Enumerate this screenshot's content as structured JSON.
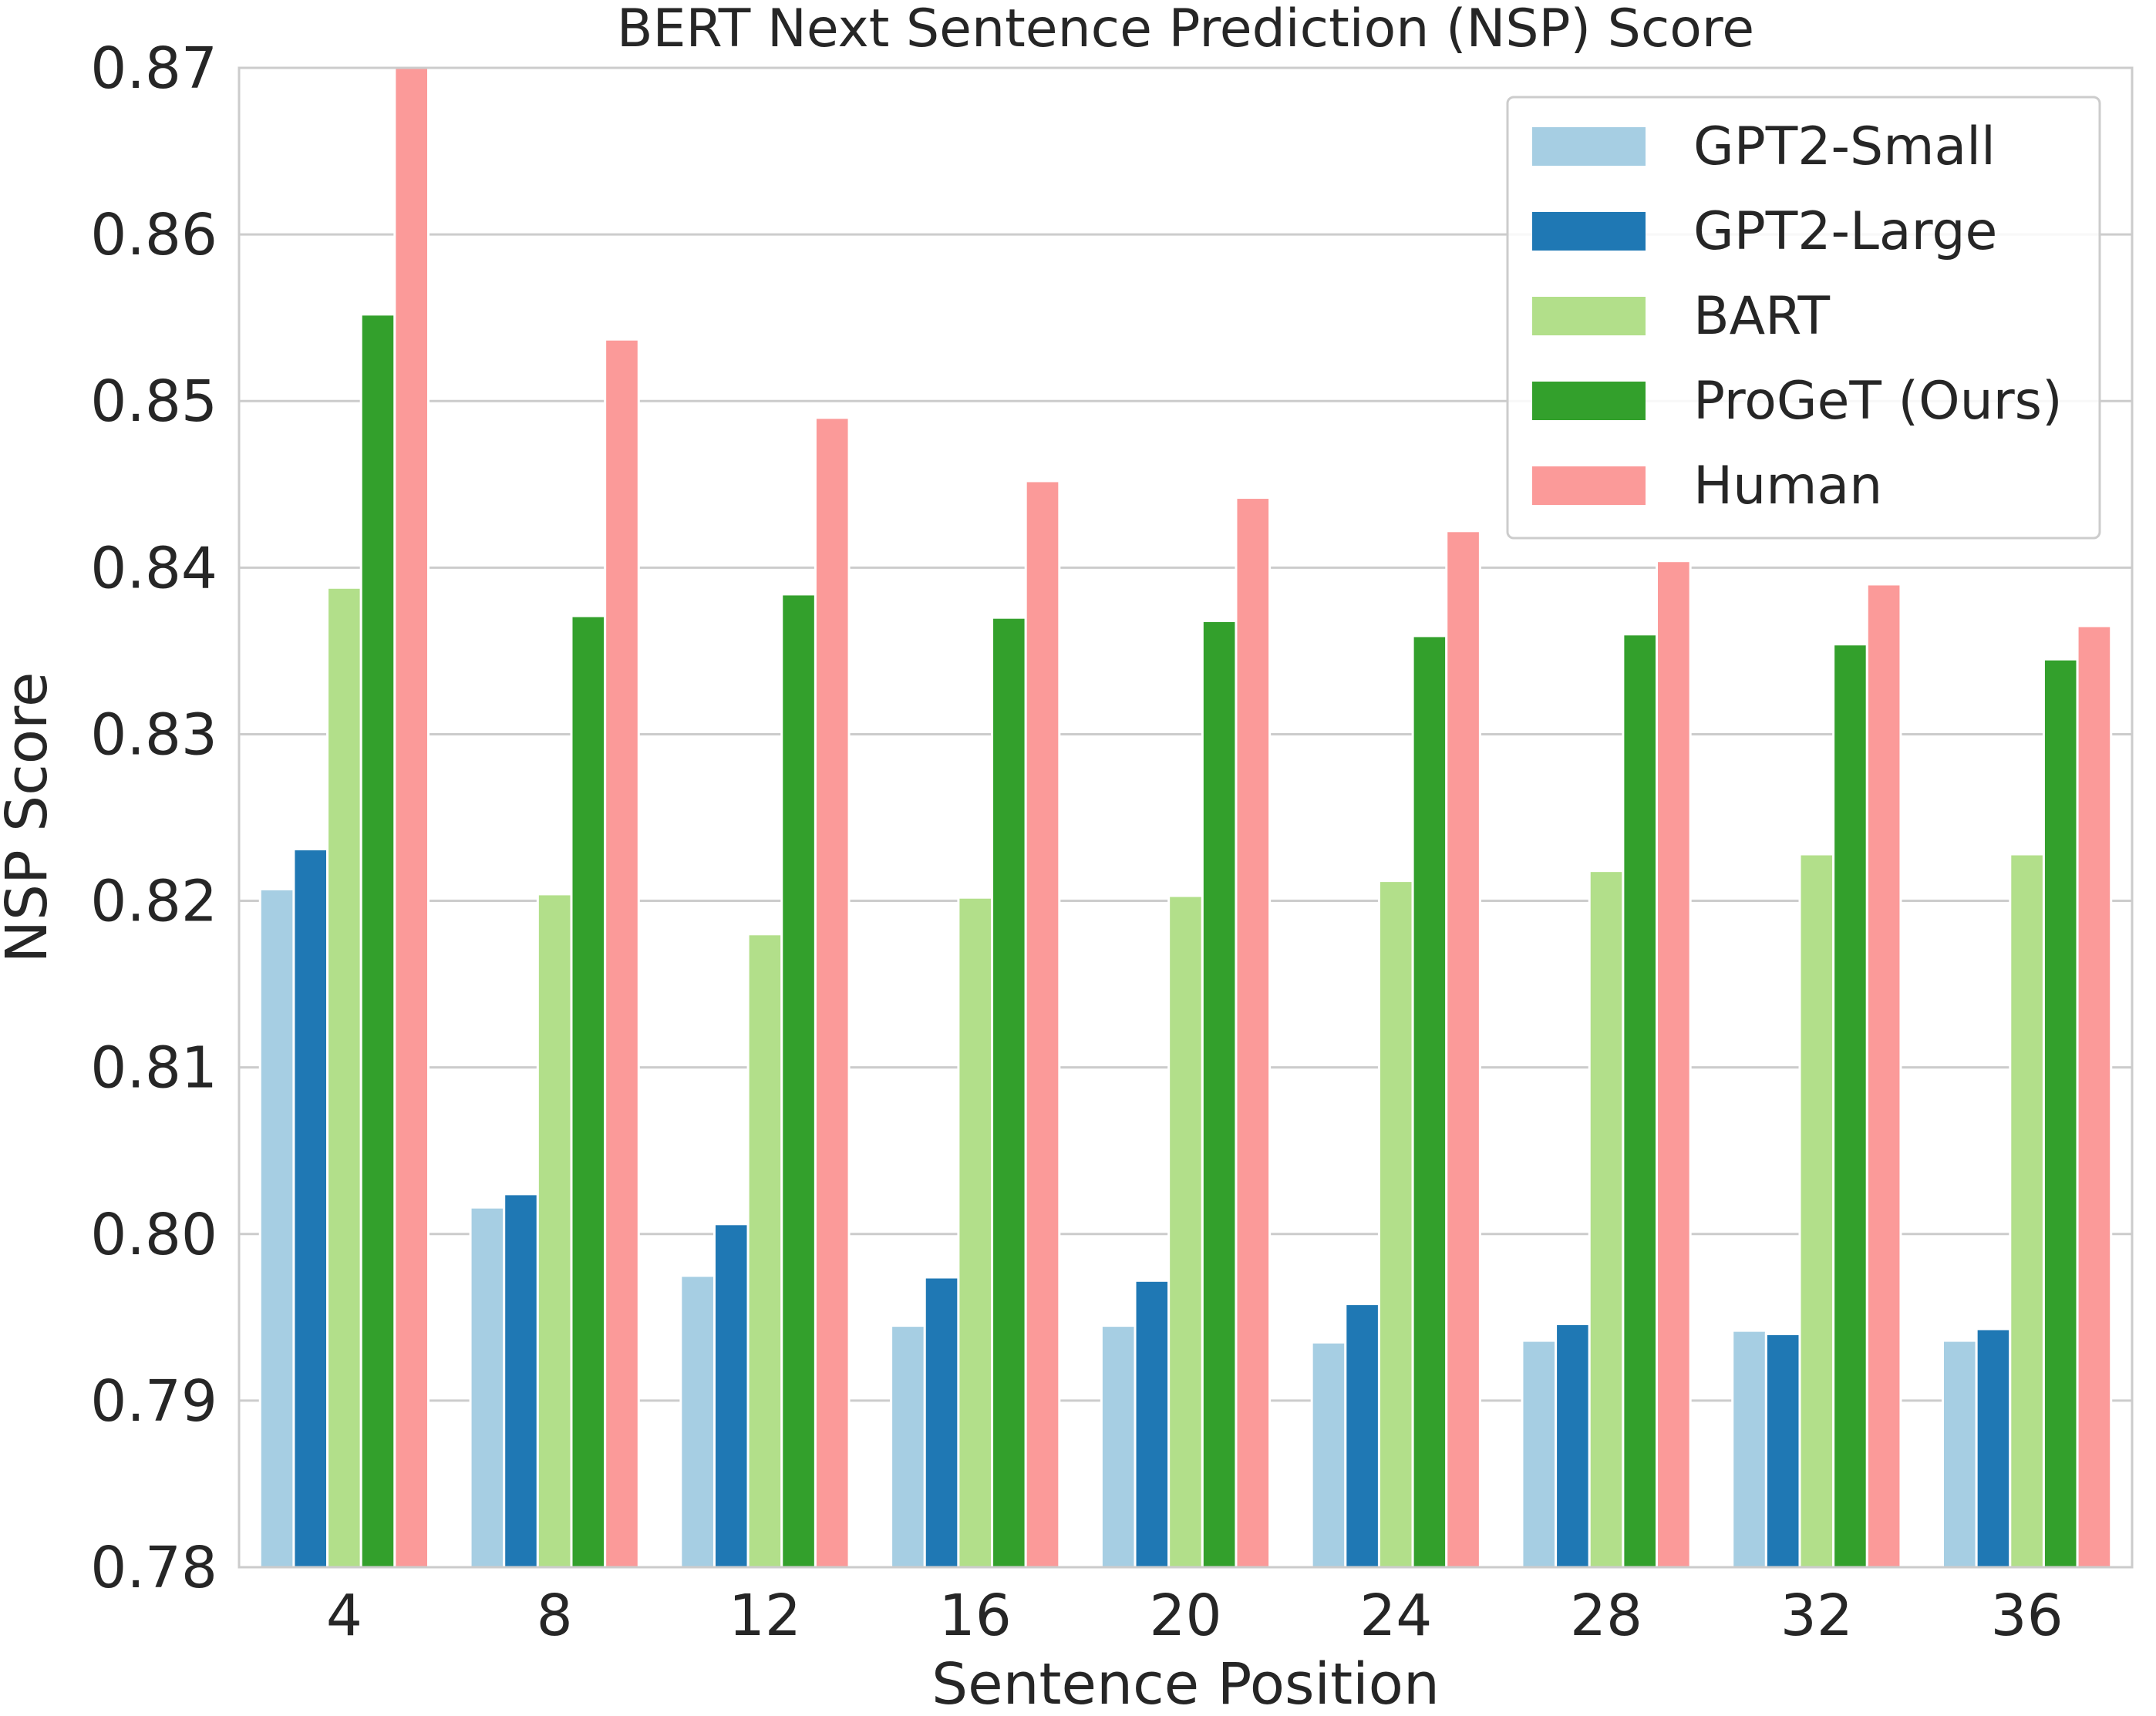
{
  "chart_data": {
    "type": "bar",
    "title": "BERT Next Sentence Prediction (NSP) Score",
    "xlabel": "Sentence Position",
    "ylabel": "NSP Score",
    "ylim": [
      0.78,
      0.87
    ],
    "yticks": [
      "0.78",
      "0.79",
      "0.80",
      "0.81",
      "0.82",
      "0.83",
      "0.84",
      "0.85",
      "0.86",
      "0.87"
    ],
    "grid": true,
    "legend_position": "top-right",
    "categories": [
      "4",
      "8",
      "12",
      "16",
      "20",
      "24",
      "28",
      "32",
      "36"
    ],
    "series": [
      {
        "name": "GPT2-Small",
        "color": "#a6cee3",
        "values": [
          0.8207,
          0.8016,
          0.7975,
          0.7945,
          0.7945,
          0.7935,
          0.7936,
          0.7942,
          0.7936
        ]
      },
      {
        "name": "GPT2-Large",
        "color": "#1f78b4",
        "values": [
          0.8231,
          0.8024,
          0.8006,
          0.7974,
          0.7972,
          0.7958,
          0.7946,
          0.794,
          0.7943
        ]
      },
      {
        "name": "BART",
        "color": "#b2df8a",
        "values": [
          0.8388,
          0.8204,
          0.818,
          0.8202,
          0.8203,
          0.8212,
          0.8218,
          0.8228,
          0.8228
        ]
      },
      {
        "name": "ProGeT (Ours)",
        "color": "#33a02c",
        "values": [
          0.8552,
          0.8371,
          0.8384,
          0.837,
          0.8368,
          0.8359,
          0.836,
          0.8354,
          0.8345
        ]
      },
      {
        "name": "Human",
        "color": "#fb9a99",
        "values": [
          0.87,
          0.8537,
          0.849,
          0.8452,
          0.8442,
          0.8422,
          0.8404,
          0.839,
          0.8365
        ]
      }
    ]
  }
}
